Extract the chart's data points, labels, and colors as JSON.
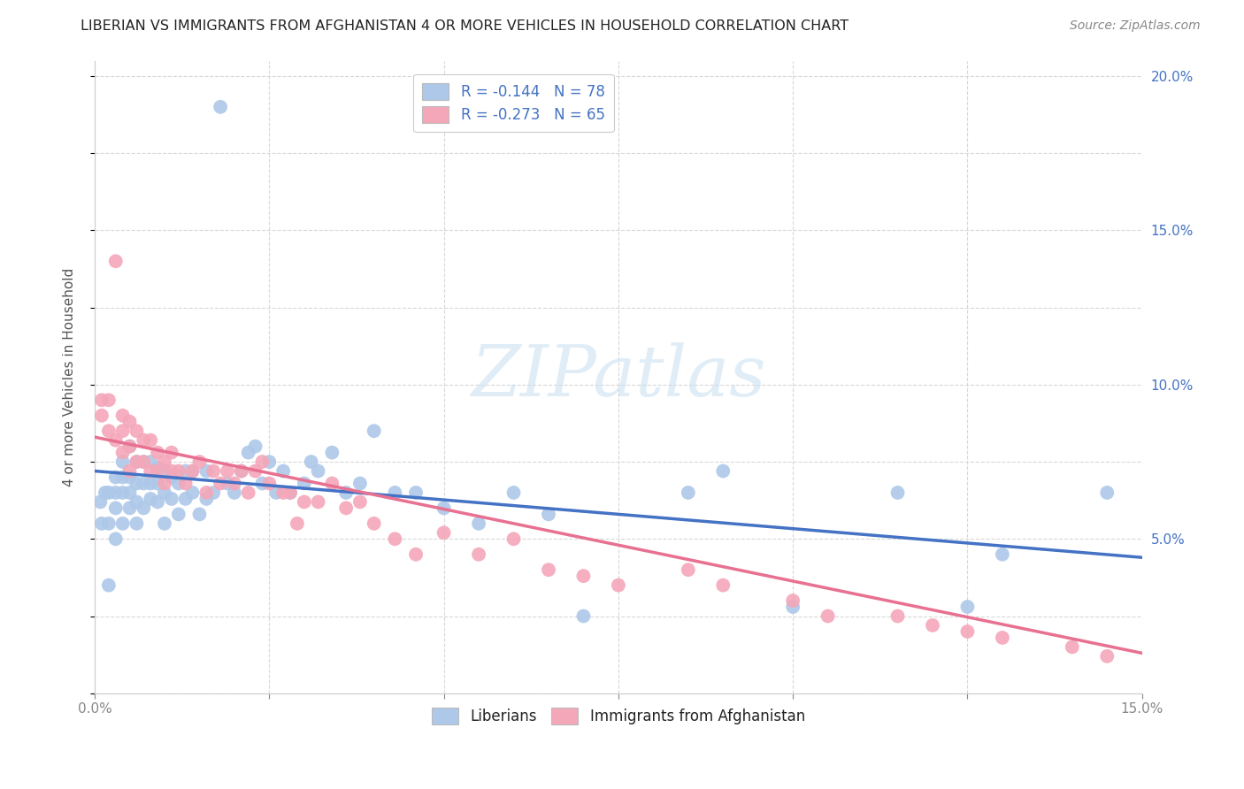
{
  "title": "LIBERIAN VS IMMIGRANTS FROM AFGHANISTAN 4 OR MORE VEHICLES IN HOUSEHOLD CORRELATION CHART",
  "source": "Source: ZipAtlas.com",
  "ylabel": "4 or more Vehicles in Household",
  "xlim": [
    0.0,
    0.15
  ],
  "ylim": [
    0.0,
    0.205
  ],
  "xtick_positions": [
    0.0,
    0.025,
    0.05,
    0.075,
    0.1,
    0.125,
    0.15
  ],
  "ytick_positions": [
    0.0,
    0.025,
    0.05,
    0.075,
    0.1,
    0.125,
    0.15,
    0.175,
    0.2
  ],
  "xtick_labels": [
    "0.0%",
    "",
    "",
    "",
    "",
    "",
    "15.0%"
  ],
  "ytick_labels_right": [
    "",
    "",
    "5.0%",
    "",
    "10.0%",
    "",
    "15.0%",
    "",
    "20.0%"
  ],
  "liberian_color": "#adc8e8",
  "afghanistan_color": "#f4a7b9",
  "liberian_line_color": "#4472c4",
  "afghanistan_line_color": "#e87090",
  "legend_label1": "R = -0.144   N = 78",
  "legend_label2": "R = -0.273   N = 65",
  "bottom_legend1": "Liberians",
  "bottom_legend2": "Immigrants from Afghanistan",
  "watermark": "ZIPatlas",
  "background_color": "#ffffff",
  "grid_color": "#d8d8d8",
  "lib_line_x0": 0.0,
  "lib_line_x1": 0.15,
  "lib_line_y0": 0.072,
  "lib_line_y1": 0.044,
  "afg_line_x0": 0.0,
  "afg_line_x1": 0.15,
  "afg_line_y0": 0.083,
  "afg_line_y1": 0.013,
  "lib_x": [
    0.0008,
    0.001,
    0.0015,
    0.002,
    0.002,
    0.002,
    0.003,
    0.003,
    0.003,
    0.003,
    0.004,
    0.004,
    0.004,
    0.004,
    0.005,
    0.005,
    0.005,
    0.005,
    0.006,
    0.006,
    0.006,
    0.006,
    0.007,
    0.007,
    0.007,
    0.008,
    0.008,
    0.008,
    0.009,
    0.009,
    0.009,
    0.01,
    0.01,
    0.01,
    0.011,
    0.011,
    0.012,
    0.012,
    0.013,
    0.013,
    0.014,
    0.014,
    0.015,
    0.016,
    0.016,
    0.017,
    0.018,
    0.019,
    0.02,
    0.021,
    0.022,
    0.023,
    0.024,
    0.025,
    0.026,
    0.027,
    0.028,
    0.03,
    0.031,
    0.032,
    0.034,
    0.036,
    0.038,
    0.04,
    0.043,
    0.046,
    0.05,
    0.055,
    0.06,
    0.065,
    0.07,
    0.085,
    0.09,
    0.1,
    0.115,
    0.125,
    0.13,
    0.145
  ],
  "lib_y": [
    0.062,
    0.055,
    0.065,
    0.035,
    0.055,
    0.065,
    0.05,
    0.06,
    0.065,
    0.07,
    0.055,
    0.065,
    0.07,
    0.075,
    0.06,
    0.065,
    0.07,
    0.08,
    0.055,
    0.062,
    0.068,
    0.075,
    0.06,
    0.068,
    0.075,
    0.063,
    0.068,
    0.075,
    0.062,
    0.068,
    0.073,
    0.055,
    0.065,
    0.072,
    0.063,
    0.07,
    0.058,
    0.068,
    0.063,
    0.072,
    0.065,
    0.072,
    0.058,
    0.063,
    0.072,
    0.065,
    0.19,
    0.068,
    0.065,
    0.072,
    0.078,
    0.08,
    0.068,
    0.075,
    0.065,
    0.072,
    0.065,
    0.068,
    0.075,
    0.072,
    0.078,
    0.065,
    0.068,
    0.085,
    0.065,
    0.065,
    0.06,
    0.055,
    0.065,
    0.058,
    0.025,
    0.065,
    0.072,
    0.028,
    0.065,
    0.028,
    0.045,
    0.065
  ],
  "afg_x": [
    0.001,
    0.001,
    0.002,
    0.002,
    0.003,
    0.003,
    0.004,
    0.004,
    0.004,
    0.005,
    0.005,
    0.005,
    0.006,
    0.006,
    0.007,
    0.007,
    0.008,
    0.008,
    0.009,
    0.009,
    0.01,
    0.01,
    0.011,
    0.011,
    0.012,
    0.013,
    0.014,
    0.015,
    0.016,
    0.017,
    0.018,
    0.019,
    0.02,
    0.021,
    0.022,
    0.023,
    0.024,
    0.025,
    0.027,
    0.028,
    0.029,
    0.03,
    0.032,
    0.034,
    0.036,
    0.038,
    0.04,
    0.043,
    0.046,
    0.05,
    0.055,
    0.06,
    0.065,
    0.07,
    0.075,
    0.085,
    0.09,
    0.1,
    0.105,
    0.115,
    0.12,
    0.125,
    0.13,
    0.14,
    0.145
  ],
  "afg_y": [
    0.09,
    0.095,
    0.085,
    0.095,
    0.082,
    0.14,
    0.078,
    0.085,
    0.09,
    0.072,
    0.08,
    0.088,
    0.075,
    0.085,
    0.075,
    0.082,
    0.072,
    0.082,
    0.072,
    0.078,
    0.068,
    0.075,
    0.072,
    0.078,
    0.072,
    0.068,
    0.072,
    0.075,
    0.065,
    0.072,
    0.068,
    0.072,
    0.068,
    0.072,
    0.065,
    0.072,
    0.075,
    0.068,
    0.065,
    0.065,
    0.055,
    0.062,
    0.062,
    0.068,
    0.06,
    0.062,
    0.055,
    0.05,
    0.045,
    0.052,
    0.045,
    0.05,
    0.04,
    0.038,
    0.035,
    0.04,
    0.035,
    0.03,
    0.025,
    0.025,
    0.022,
    0.02,
    0.018,
    0.015,
    0.012
  ]
}
